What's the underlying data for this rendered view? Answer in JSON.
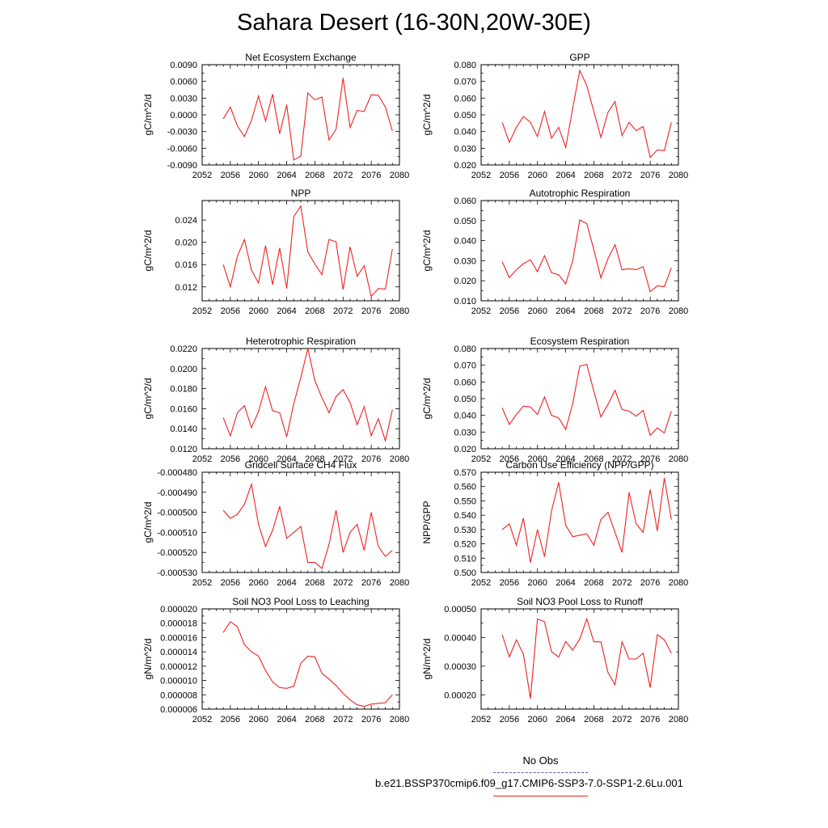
{
  "title": "Sahara Desert (16-30N,20W-30E)",
  "legend": {
    "obs_label": "No Obs",
    "model_label": "b.e21.BSSP370cmip6.f09_g17.CMIP6-SSP3-7.0-SSP1-2.6Lu.001",
    "obs_color": "#5555cc",
    "model_color": "#ee2222"
  },
  "chart_data": [
    {
      "type": "line",
      "title": "Net Ecosystem Exchange",
      "ylabel": "gC/m^2/d",
      "xlim": [
        2052,
        2080
      ],
      "x_ticks": [
        "2052",
        "2056",
        "2060",
        "2064",
        "2068",
        "2072",
        "2076",
        "2080"
      ],
      "ylim": [
        -0.009,
        0.009
      ],
      "y_ticks": [
        "-0.0090",
        "-0.0060",
        "-0.0030",
        "0.0000",
        "0.0030",
        "0.0060",
        "0.0090"
      ],
      "x": [
        2055,
        2056,
        2057,
        2058,
        2059,
        2060,
        2061,
        2062,
        2063,
        2064,
        2065,
        2066,
        2067,
        2068,
        2069,
        2070,
        2071,
        2072,
        2073,
        2074,
        2075,
        2076,
        2077,
        2078,
        2079
      ],
      "series": [
        {
          "values": [
            -0.0007,
            0.0014,
            -0.002,
            -0.0039,
            -0.001,
            0.0034,
            -0.0011,
            0.0037,
            -0.0034,
            0.0018,
            -0.0081,
            -0.0074,
            0.0039,
            0.0027,
            0.0032,
            -0.0045,
            -0.0026,
            0.0066,
            -0.0023,
            0.0008,
            0.0006,
            0.0036,
            0.0035,
            0.0014,
            -0.0029
          ]
        }
      ]
    },
    {
      "type": "line",
      "title": "GPP",
      "ylabel": "gC/m^2/d",
      "xlim": [
        2052,
        2080
      ],
      "x_ticks": [
        "2052",
        "2056",
        "2060",
        "2064",
        "2068",
        "2072",
        "2076",
        "2080"
      ],
      "ylim": [
        0.02,
        0.08
      ],
      "y_ticks": [
        "0.020",
        "0.030",
        "0.040",
        "0.050",
        "0.060",
        "0.070",
        "0.080"
      ],
      "x": [
        2055,
        2056,
        2057,
        2058,
        2059,
        2060,
        2061,
        2062,
        2063,
        2064,
        2065,
        2066,
        2067,
        2068,
        2069,
        2070,
        2071,
        2072,
        2073,
        2074,
        2075,
        2076,
        2077,
        2078,
        2079
      ],
      "series": [
        {
          "values": [
            0.0455,
            0.0335,
            0.0425,
            0.049,
            0.0455,
            0.037,
            0.052,
            0.036,
            0.0425,
            0.0305,
            0.054,
            0.0765,
            0.0675,
            0.052,
            0.0365,
            0.0515,
            0.058,
            0.0375,
            0.0455,
            0.0405,
            0.043,
            0.0245,
            0.029,
            0.0285,
            0.0455
          ]
        }
      ]
    },
    {
      "type": "line",
      "title": "NPP",
      "ylabel": "gC/m^2/d",
      "xlim": [
        2052,
        2080
      ],
      "x_ticks": [
        "2052",
        "2056",
        "2060",
        "2064",
        "2068",
        "2072",
        "2076",
        "2080"
      ],
      "ylim": [
        0.0095,
        0.0275
      ],
      "y_ticks": [
        "0.012",
        "0.016",
        "0.020",
        "0.024"
      ],
      "y_tick_values": [
        0.012,
        0.016,
        0.02,
        0.024
      ],
      "x": [
        2055,
        2056,
        2057,
        2058,
        2059,
        2060,
        2061,
        2062,
        2063,
        2064,
        2065,
        2066,
        2067,
        2068,
        2069,
        2070,
        2071,
        2072,
        2073,
        2074,
        2075,
        2076,
        2077,
        2078,
        2079
      ],
      "series": [
        {
          "values": [
            0.016,
            0.012,
            0.0175,
            0.0205,
            0.015,
            0.0127,
            0.0194,
            0.0124,
            0.019,
            0.0117,
            0.0246,
            0.0265,
            0.0183,
            0.0161,
            0.0142,
            0.0205,
            0.0201,
            0.0115,
            0.0192,
            0.0139,
            0.0158,
            0.0103,
            0.0117,
            0.0116,
            0.0188
          ]
        }
      ]
    },
    {
      "type": "line",
      "title": "Autotrophic Respiration",
      "ylabel": "gC/m^2/d",
      "xlim": [
        2052,
        2080
      ],
      "x_ticks": [
        "2052",
        "2056",
        "2060",
        "2064",
        "2068",
        "2072",
        "2076",
        "2080"
      ],
      "ylim": [
        0.01,
        0.06
      ],
      "y_ticks": [
        "0.010",
        "0.020",
        "0.030",
        "0.040",
        "0.050",
        "0.060"
      ],
      "x": [
        2055,
        2056,
        2057,
        2058,
        2059,
        2060,
        2061,
        2062,
        2063,
        2064,
        2065,
        2066,
        2067,
        2068,
        2069,
        2070,
        2071,
        2072,
        2073,
        2074,
        2075,
        2076,
        2077,
        2078,
        2079
      ],
      "series": [
        {
          "values": [
            0.0295,
            0.0215,
            0.0255,
            0.0285,
            0.0305,
            0.0245,
            0.0325,
            0.024,
            0.023,
            0.0185,
            0.03,
            0.0503,
            0.0485,
            0.0355,
            0.0215,
            0.031,
            0.038,
            0.0255,
            0.026,
            0.0255,
            0.027,
            0.0145,
            0.0175,
            0.017,
            0.0265
          ]
        }
      ]
    },
    {
      "type": "line",
      "title": "Heterotrophic Respiration",
      "ylabel": "gC/m^2/d",
      "xlim": [
        2052,
        2080
      ],
      "x_ticks": [
        "2052",
        "2056",
        "2060",
        "2064",
        "2068",
        "2072",
        "2076",
        "2080"
      ],
      "ylim": [
        0.012,
        0.022
      ],
      "y_ticks": [
        "0.0120",
        "0.0140",
        "0.0160",
        "0.0180",
        "0.0200",
        "0.0220"
      ],
      "x": [
        2055,
        2056,
        2057,
        2058,
        2059,
        2060,
        2061,
        2062,
        2063,
        2064,
        2065,
        2066,
        2067,
        2068,
        2069,
        2070,
        2071,
        2072,
        2073,
        2074,
        2075,
        2076,
        2077,
        2078,
        2079
      ],
      "series": [
        {
          "values": [
            0.0151,
            0.0133,
            0.0156,
            0.0163,
            0.0141,
            0.0157,
            0.0182,
            0.0158,
            0.0156,
            0.0132,
            0.0165,
            0.0191,
            0.022,
            0.0188,
            0.0171,
            0.0156,
            0.0172,
            0.0179,
            0.0166,
            0.0144,
            0.0162,
            0.0133,
            0.015,
            0.0128,
            0.0159
          ]
        }
      ]
    },
    {
      "type": "line",
      "title": "Ecosystem Respiration",
      "ylabel": "gC/m^2/d",
      "xlim": [
        2052,
        2080
      ],
      "x_ticks": [
        "2052",
        "2056",
        "2060",
        "2064",
        "2068",
        "2072",
        "2076",
        "2080"
      ],
      "ylim": [
        0.02,
        0.08
      ],
      "y_ticks": [
        "0.020",
        "0.030",
        "0.040",
        "0.050",
        "0.060",
        "0.070",
        "0.080"
      ],
      "x": [
        2055,
        2056,
        2057,
        2058,
        2059,
        2060,
        2061,
        2062,
        2063,
        2064,
        2065,
        2066,
        2067,
        2068,
        2069,
        2070,
        2071,
        2072,
        2073,
        2074,
        2075,
        2076,
        2077,
        2078,
        2079
      ],
      "series": [
        {
          "values": [
            0.0445,
            0.0345,
            0.0405,
            0.0455,
            0.045,
            0.0405,
            0.051,
            0.04,
            0.0385,
            0.0315,
            0.047,
            0.0695,
            0.0705,
            0.0545,
            0.039,
            0.0465,
            0.055,
            0.0435,
            0.0425,
            0.0395,
            0.043,
            0.028,
            0.0325,
            0.0295,
            0.0425
          ]
        }
      ]
    },
    {
      "type": "line",
      "title": "Gridcell Surface CH4 Flux",
      "ylabel": "gC/m^2/d",
      "xlim": [
        2052,
        2080
      ],
      "x_ticks": [
        "2052",
        "2056",
        "2060",
        "2064",
        "2068",
        "2072",
        "2076",
        "2080"
      ],
      "ylim": [
        -0.00053,
        -0.00048
      ],
      "y_ticks": [
        "-0.000530",
        "-0.000520",
        "-0.000510",
        "-0.000500",
        "-0.000490",
        "-0.000480"
      ],
      "x": [
        2055,
        2056,
        2057,
        2058,
        2059,
        2060,
        2061,
        2062,
        2063,
        2064,
        2065,
        2066,
        2067,
        2068,
        2069,
        2070,
        2071,
        2072,
        2073,
        2074,
        2075,
        2076,
        2077,
        2078,
        2079
      ],
      "series": [
        {
          "values": [
            -0.000499,
            -0.000503,
            -0.000501,
            -0.000496,
            -0.000486,
            -0.000506,
            -0.000517,
            -0.000509,
            -0.000497,
            -0.000513,
            -0.00051,
            -0.000507,
            -0.000525,
            -0.000525,
            -0.000528,
            -0.000516,
            -0.000499,
            -0.00052,
            -0.00051,
            -0.000506,
            -0.000519,
            -0.0005,
            -0.000517,
            -0.000522,
            -0.000519
          ]
        }
      ]
    },
    {
      "type": "line",
      "title": "Carbon Use Efficiency (NPP/GPP)",
      "ylabel": "NPP/GPP",
      "xlim": [
        2052,
        2080
      ],
      "x_ticks": [
        "2052",
        "2056",
        "2060",
        "2064",
        "2068",
        "2072",
        "2076",
        "2080"
      ],
      "ylim": [
        0.5,
        0.57
      ],
      "y_ticks": [
        "0.500",
        "0.510",
        "0.520",
        "0.530",
        "0.540",
        "0.550",
        "0.560",
        "0.570"
      ],
      "x": [
        2055,
        2056,
        2057,
        2058,
        2059,
        2060,
        2061,
        2062,
        2063,
        2064,
        2065,
        2066,
        2067,
        2068,
        2069,
        2070,
        2071,
        2072,
        2073,
        2074,
        2075,
        2076,
        2077,
        2078,
        2079
      ],
      "series": [
        {
          "values": [
            0.53,
            0.534,
            0.519,
            0.538,
            0.507,
            0.53,
            0.511,
            0.543,
            0.563,
            0.533,
            0.525,
            0.526,
            0.527,
            0.519,
            0.537,
            0.542,
            0.528,
            0.514,
            0.556,
            0.534,
            0.528,
            0.558,
            0.529,
            0.566,
            0.537
          ]
        }
      ]
    },
    {
      "type": "line",
      "title": "Soil NO3 Pool Loss to Leaching",
      "ylabel": "gN/m^2/d",
      "xlim": [
        2052,
        2080
      ],
      "x_ticks": [
        "2052",
        "2056",
        "2060",
        "2064",
        "2068",
        "2072",
        "2076",
        "2080"
      ],
      "ylim": [
        6e-06,
        2e-05
      ],
      "y_ticks": [
        "0.000006",
        "0.000008",
        "0.000010",
        "0.000012",
        "0.000014",
        "0.000016",
        "0.000018",
        "0.000020"
      ],
      "x": [
        2055,
        2056,
        2057,
        2058,
        2059,
        2060,
        2061,
        2062,
        2063,
        2064,
        2065,
        2066,
        2067,
        2068,
        2069,
        2070,
        2071,
        2072,
        2073,
        2074,
        2075,
        2076,
        2077,
        2078,
        2079
      ],
      "series": [
        {
          "values": [
            1.67e-05,
            1.82e-05,
            1.75e-05,
            1.5e-05,
            1.4e-05,
            1.34e-05,
            1.14e-05,
            9.8e-06,
            9e-06,
            8.9e-06,
            9.2e-06,
            1.24e-05,
            1.34e-05,
            1.33e-05,
            1.1e-05,
            1.02e-05,
            9.3e-06,
            8.2e-06,
            7.3e-06,
            6.6e-06,
            6.4e-06,
            6.7e-06,
            6.8e-06,
            6.9e-06,
            8e-06
          ]
        }
      ]
    },
    {
      "type": "line",
      "title": "Soil NO3 Pool Loss to Runoff",
      "ylabel": "gN/m^2/d",
      "xlim": [
        2052,
        2080
      ],
      "x_ticks": [
        "2052",
        "2056",
        "2060",
        "2064",
        "2068",
        "2072",
        "2076",
        "2080"
      ],
      "ylim": [
        0.00015,
        0.0005
      ],
      "y_ticks": [
        "0.00020",
        "0.00030",
        "0.00040",
        "0.00050"
      ],
      "y_tick_values": [
        0.0002,
        0.0003,
        0.0004,
        0.0005
      ],
      "x": [
        2055,
        2056,
        2057,
        2058,
        2059,
        2060,
        2061,
        2062,
        2063,
        2064,
        2065,
        2066,
        2067,
        2068,
        2069,
        2070,
        2071,
        2072,
        2073,
        2074,
        2075,
        2076,
        2077,
        2078,
        2079
      ],
      "series": [
        {
          "values": [
            0.00041,
            0.000332,
            0.000392,
            0.000342,
            0.000187,
            0.000465,
            0.000455,
            0.00035,
            0.000332,
            0.000386,
            0.000356,
            0.000395,
            0.000465,
            0.000385,
            0.000385,
            0.000278,
            0.000235,
            0.000385,
            0.000325,
            0.000325,
            0.000345,
            0.000225,
            0.00041,
            0.000392,
            0.000345
          ]
        }
      ]
    }
  ]
}
